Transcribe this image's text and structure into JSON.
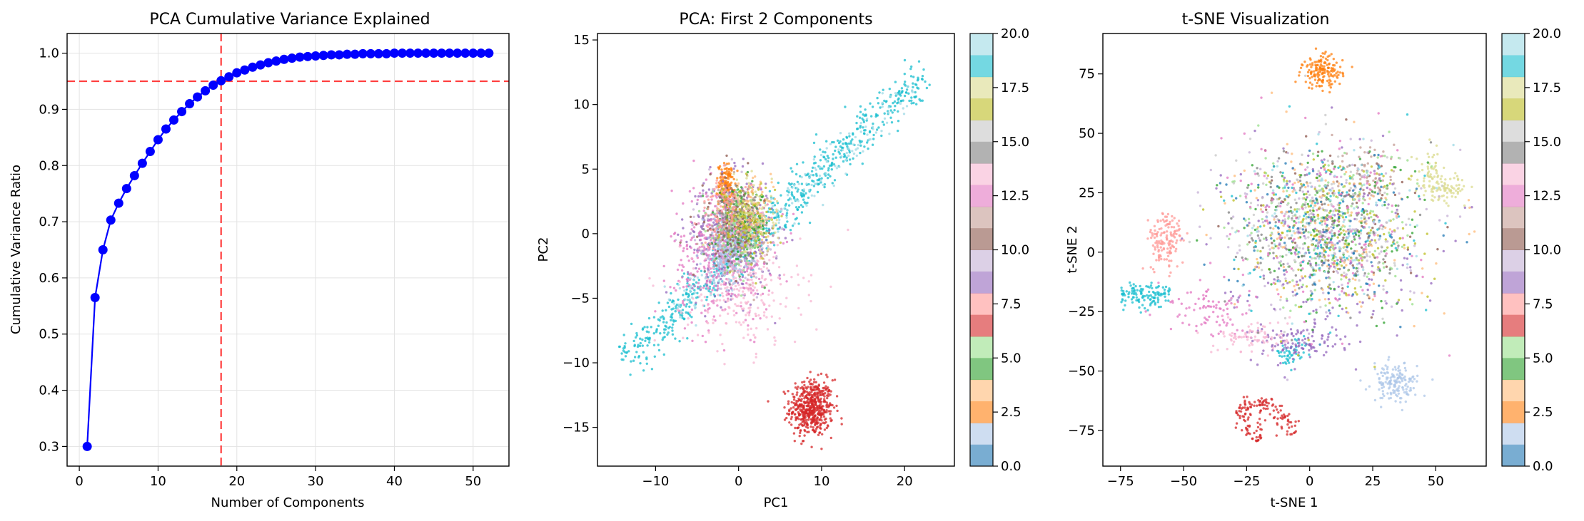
{
  "chart_data": [
    {
      "type": "line",
      "title": "PCA Cumulative Variance Explained",
      "xlabel": "Number of Components",
      "ylabel": "Cumulative Variance Ratio",
      "xlim": [
        -1.55,
        54.55
      ],
      "ylim": [
        0.265,
        1.035
      ],
      "xticks": [
        0,
        10,
        20,
        30,
        40,
        50
      ],
      "xtick_labels": [
        "0",
        "10",
        "20",
        "30",
        "40",
        "50"
      ],
      "yticks": [
        0.3,
        0.4,
        0.5,
        0.6,
        0.7,
        0.8,
        0.9,
        1.0
      ],
      "ytick_labels": [
        "0.3",
        "0.4",
        "0.5",
        "0.6",
        "0.7",
        "0.8",
        "0.9",
        "1.0"
      ],
      "grid": true,
      "x": [
        1,
        2,
        3,
        4,
        5,
        6,
        7,
        8,
        9,
        10,
        11,
        12,
        13,
        14,
        15,
        16,
        17,
        18,
        19,
        20,
        21,
        22,
        23,
        24,
        25,
        26,
        27,
        28,
        29,
        30,
        31,
        32,
        33,
        34,
        35,
        36,
        37,
        38,
        39,
        40,
        41,
        42,
        43,
        44,
        45,
        46,
        47,
        48,
        49,
        50,
        51,
        52
      ],
      "series": [
        {
          "color": "#0000ff",
          "marker": "circle",
          "values": [
            0.3,
            0.565,
            0.65,
            0.703,
            0.733,
            0.759,
            0.782,
            0.804,
            0.825,
            0.846,
            0.865,
            0.881,
            0.896,
            0.91,
            0.922,
            0.933,
            0.943,
            0.951,
            0.958,
            0.965,
            0.97,
            0.975,
            0.979,
            0.983,
            0.986,
            0.989,
            0.991,
            0.993,
            0.994,
            0.995,
            0.996,
            0.997,
            0.997,
            0.998,
            0.998,
            0.999,
            0.999,
            0.999,
            0.999,
            1.0,
            1.0,
            1.0,
            1.0,
            1.0,
            1.0,
            1.0,
            1.0,
            1.0,
            1.0,
            1.0,
            1.0,
            1.0
          ]
        }
      ],
      "reference_lines": [
        {
          "orientation": "horizontal",
          "value": 0.95,
          "color": "#ff0000",
          "style": "dashed"
        },
        {
          "orientation": "vertical",
          "value": 18,
          "color": "#ff0000",
          "style": "dashed"
        }
      ]
    },
    {
      "type": "scatter",
      "title": "PCA: First 2 Components",
      "xlabel": "PC1",
      "ylabel": "PC2",
      "xlim": [
        -17,
        26
      ],
      "ylim": [
        -18,
        15.5
      ],
      "xticks": [
        -10,
        0,
        10,
        20
      ],
      "xtick_labels": [
        "−10",
        "0",
        "10",
        "20"
      ],
      "yticks": [
        -15,
        -10,
        -5,
        0,
        5,
        10,
        15
      ],
      "ytick_labels": [
        "−15",
        "−10",
        "−5",
        "0",
        "5",
        "10",
        "15"
      ],
      "grid": false,
      "colormap": "tab20",
      "colorbar": {
        "range": [
          0,
          20
        ],
        "ticks": [
          0.0,
          2.5,
          5.0,
          7.5,
          10.0,
          12.5,
          15.0,
          17.5,
          20.0
        ],
        "tick_labels": [
          "0.0",
          "2.5",
          "5.0",
          "7.5",
          "10.0",
          "12.5",
          "15.0",
          "17.5",
          "20.0"
        ]
      },
      "clusters": [
        {
          "color": "#d62728",
          "center": [
            8.8,
            -13.5
          ],
          "spread": [
            1.3,
            1.1
          ],
          "n": 520,
          "shape": "blob"
        },
        {
          "color": "#ff7f0e",
          "center": [
            -1.5,
            3.8
          ],
          "spread": [
            0.45,
            0.8
          ],
          "n": 150,
          "shape": "blob"
        },
        {
          "color": "#17becf",
          "from": [
            -14,
            -10
          ],
          "to": [
            22.5,
            12.5
          ],
          "width": 0.9,
          "n": 700,
          "shape": "band"
        },
        {
          "color": "#9edae5",
          "from": [
            -8,
            -6
          ],
          "to": [
            21,
            11
          ],
          "width": 0.9,
          "n": 180,
          "shape": "band"
        },
        {
          "color": "#9467bd",
          "center": [
            -1,
            -0.3
          ],
          "spread": [
            2.6,
            2.3
          ],
          "n": 360,
          "shape": "blob"
        },
        {
          "color": "#c5b0d5",
          "center": [
            -1,
            0
          ],
          "spread": [
            2.2,
            2.0
          ],
          "n": 180,
          "shape": "blob"
        },
        {
          "color": "#e377c2",
          "center": [
            -2,
            -1.5
          ],
          "spread": [
            3.0,
            2.6
          ],
          "n": 380,
          "shape": "blob"
        },
        {
          "color": "#f7b6d2",
          "center": [
            0.5,
            -4.5
          ],
          "spread": [
            3.5,
            2.2
          ],
          "n": 240,
          "shape": "blob"
        },
        {
          "color": "#aec7e8",
          "center": [
            -1.5,
            -1.2
          ],
          "spread": [
            1.4,
            1.3
          ],
          "n": 220,
          "shape": "blob"
        },
        {
          "color": "#ffbb78",
          "center": [
            1.5,
            1.5
          ],
          "spread": [
            1.3,
            1.1
          ],
          "n": 160,
          "shape": "blob"
        },
        {
          "color": "#2ca02c",
          "center": [
            0.5,
            0.6
          ],
          "spread": [
            1.6,
            1.4
          ],
          "n": 150,
          "shape": "blob"
        },
        {
          "color": "#98df8a",
          "center": [
            0,
            0
          ],
          "spread": [
            1.6,
            1.4
          ],
          "n": 120,
          "shape": "blob"
        },
        {
          "color": "#8c564b",
          "center": [
            -1,
            1
          ],
          "spread": [
            1.8,
            1.8
          ],
          "n": 100,
          "shape": "blob"
        },
        {
          "color": "#c49c94",
          "center": [
            0,
            0.5
          ],
          "spread": [
            1.8,
            1.6
          ],
          "n": 100,
          "shape": "blob"
        },
        {
          "color": "#7f7f7f",
          "center": [
            -0.5,
            0.8
          ],
          "spread": [
            1.5,
            1.5
          ],
          "n": 100,
          "shape": "blob"
        },
        {
          "color": "#bcbd22",
          "center": [
            1,
            1
          ],
          "spread": [
            1.6,
            1.5
          ],
          "n": 120,
          "shape": "blob"
        },
        {
          "color": "#dbdb8d",
          "center": [
            1.5,
            1.5
          ],
          "spread": [
            1.6,
            1.6
          ],
          "n": 100,
          "shape": "blob"
        },
        {
          "color": "#ff9896",
          "center": [
            -1.5,
            1.5
          ],
          "spread": [
            1.5,
            1.4
          ],
          "n": 100,
          "shape": "blob"
        }
      ]
    },
    {
      "type": "scatter",
      "title": "t-SNE Visualization",
      "xlabel": "t-SNE 1",
      "ylabel": "t-SNE 2",
      "xlim": [
        -82,
        70
      ],
      "ylim": [
        -90,
        92
      ],
      "xticks": [
        -75,
        -50,
        -25,
        0,
        25,
        50
      ],
      "xtick_labels": [
        "−75",
        "−50",
        "−25",
        "0",
        "25",
        "50"
      ],
      "yticks": [
        -75,
        -50,
        -25,
        0,
        25,
        50,
        75
      ],
      "ytick_labels": [
        "−75",
        "−50",
        "−25",
        "0",
        "25",
        "50",
        "75"
      ],
      "grid": false,
      "colormap": "tab20",
      "colorbar": {
        "range": [
          0,
          20
        ],
        "ticks": [
          0.0,
          2.5,
          5.0,
          7.5,
          10.0,
          12.5,
          15.0,
          17.5,
          20.0
        ],
        "tick_labels": [
          "0.0",
          "2.5",
          "5.0",
          "7.5",
          "10.0",
          "12.5",
          "15.0",
          "17.5",
          "20.0"
        ]
      },
      "clusters": [
        {
          "color": "#ff7f0e",
          "center": [
            5,
            76
          ],
          "spread": [
            4,
            3.5
          ],
          "n": 160,
          "shape": "blob"
        },
        {
          "color": "#aec7e8",
          "center": [
            34,
            -55
          ],
          "spread": [
            4.5,
            4
          ],
          "n": 160,
          "shape": "blob"
        },
        {
          "color": "#ff9896",
          "center": [
            -57,
            5
          ],
          "spread": [
            3.5,
            6
          ],
          "n": 140,
          "shape": "blob"
        },
        {
          "color": "#dbdb8d",
          "center": [
            48,
            32
          ],
          "spread": [
            3,
            5
          ],
          "n": 70,
          "shape": "blob"
        },
        {
          "color": "#dbdb8d",
          "center": [
            55,
            27
          ],
          "spread": [
            4,
            2.5
          ],
          "n": 60,
          "shape": "blob"
        },
        {
          "color": "#17becf",
          "from": [
            -75,
            -18
          ],
          "to": [
            -55,
            -18
          ],
          "width": 2.5,
          "n": 120,
          "shape": "band"
        },
        {
          "color": "#17becf",
          "from": [
            -12,
            -44
          ],
          "to": [
            0,
            -40
          ],
          "width": 2.5,
          "n": 50,
          "shape": "band"
        },
        {
          "color": "#d62728",
          "from": [
            -28,
            -65
          ],
          "to": [
            -20,
            -80
          ],
          "width": 2.0,
          "n": 60,
          "shape": "band"
        },
        {
          "color": "#d62728",
          "from": [
            -18,
            -62
          ],
          "to": [
            -6,
            -76
          ],
          "width": 2.0,
          "n": 60,
          "shape": "band"
        },
        {
          "color": "#d62728",
          "from": [
            -28,
            -64
          ],
          "to": [
            -17,
            -63
          ],
          "width": 1.5,
          "n": 30,
          "shape": "band"
        },
        {
          "color": "#9467bd",
          "center": [
            -5,
            -38
          ],
          "spread": [
            9,
            4
          ],
          "n": 120,
          "shape": "blob"
        },
        {
          "color": "#e377c2",
          "center": [
            -40,
            -25
          ],
          "spread": [
            8,
            6
          ],
          "n": 90,
          "shape": "blob"
        },
        {
          "color": "#f7b6d2",
          "center": [
            -22,
            -35
          ],
          "spread": [
            7,
            3.5
          ],
          "n": 80,
          "shape": "blob"
        },
        {
          "color": "#c49c94",
          "center": [
            25,
            32
          ],
          "spread": [
            5,
            8
          ],
          "n": 60,
          "shape": "blob"
        },
        {
          "color": "#8c564b",
          "center": [
            15,
            15
          ],
          "spread": [
            18,
            18
          ],
          "n": 80,
          "shape": "blob"
        },
        {
          "color": "#c5b0d5",
          "center": [
            5,
            10
          ],
          "spread": [
            20,
            18
          ],
          "n": 180,
          "shape": "blob"
        },
        {
          "color": "#9467bd",
          "center": [
            5,
            5
          ],
          "spread": [
            20,
            19
          ],
          "n": 200,
          "shape": "blob"
        },
        {
          "color": "#bcbd22",
          "center": [
            8,
            10
          ],
          "spread": [
            18,
            17
          ],
          "n": 180,
          "shape": "blob"
        },
        {
          "color": "#2ca02c",
          "center": [
            8,
            8
          ],
          "spread": [
            18,
            17
          ],
          "n": 160,
          "shape": "blob"
        },
        {
          "color": "#98df8a",
          "center": [
            6,
            10
          ],
          "spread": [
            18,
            17
          ],
          "n": 160,
          "shape": "blob"
        },
        {
          "color": "#7f7f7f",
          "center": [
            6,
            10
          ],
          "spread": [
            18,
            17
          ],
          "n": 150,
          "shape": "blob"
        },
        {
          "color": "#c7c7c7",
          "center": [
            6,
            10
          ],
          "spread": [
            18,
            17
          ],
          "n": 150,
          "shape": "blob"
        },
        {
          "color": "#ffbb78",
          "center": [
            6,
            10
          ],
          "spread": [
            18,
            17
          ],
          "n": 150,
          "shape": "blob"
        },
        {
          "color": "#1f77b4",
          "center": [
            6,
            10
          ],
          "spread": [
            18,
            17
          ],
          "n": 120,
          "shape": "blob"
        },
        {
          "color": "#e377c2",
          "center": [
            4,
            8
          ],
          "spread": [
            19,
            18
          ],
          "n": 140,
          "shape": "blob"
        },
        {
          "color": "#17becf",
          "center": [
            8,
            8
          ],
          "spread": [
            19,
            18
          ],
          "n": 80,
          "shape": "blob"
        },
        {
          "color": "#9edae5",
          "center": [
            6,
            12
          ],
          "spread": [
            18,
            17
          ],
          "n": 100,
          "shape": "blob"
        }
      ]
    }
  ],
  "tab20": [
    "#1f77b4",
    "#aec7e8",
    "#ff7f0e",
    "#ffbb78",
    "#2ca02c",
    "#98df8a",
    "#d62728",
    "#ff9896",
    "#9467bd",
    "#c5b0d5",
    "#8c564b",
    "#c49c94",
    "#e377c2",
    "#f7b6d2",
    "#7f7f7f",
    "#c7c7c7",
    "#bcbd22",
    "#dbdb8d",
    "#17becf",
    "#9edae5"
  ]
}
